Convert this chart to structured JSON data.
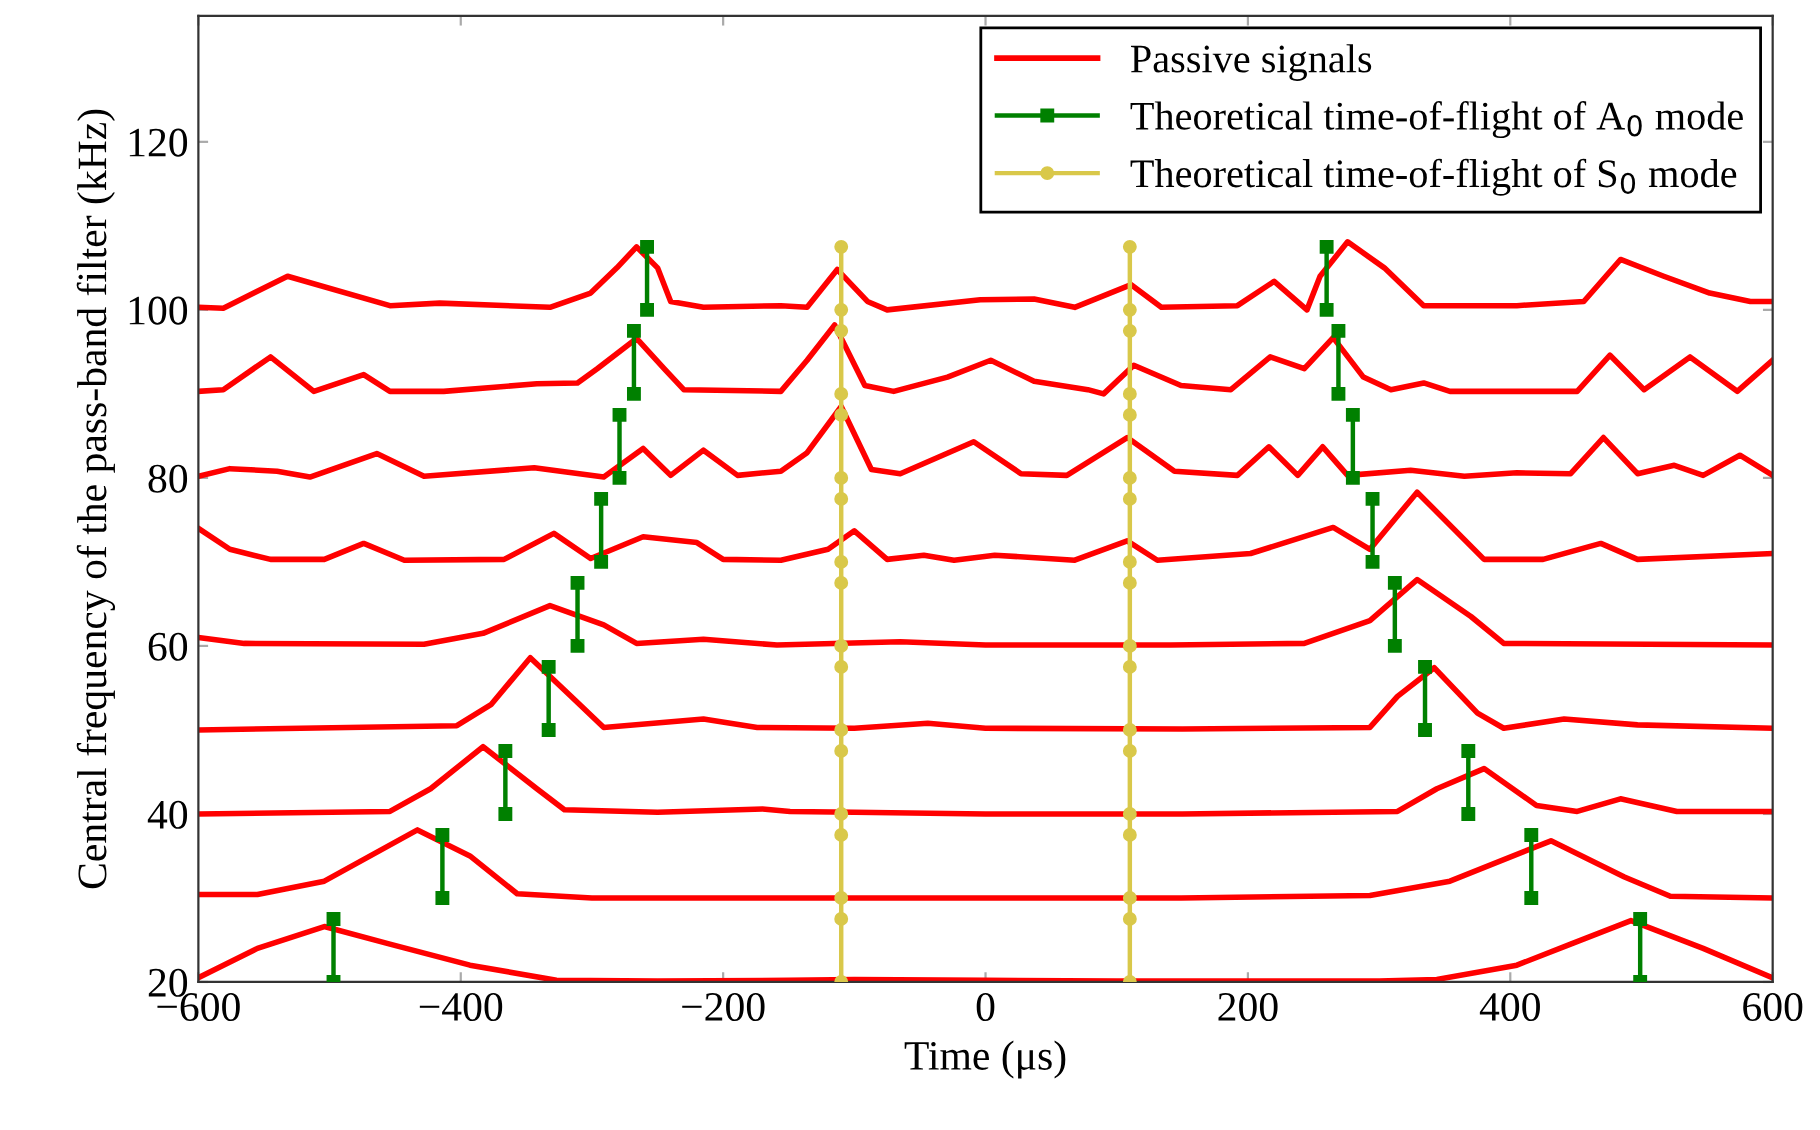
{
  "chart_data": {
    "type": "line",
    "xlabel": "Time (μs)",
    "ylabel": "Central frequency of the pass-band filter (kHz)",
    "xlim": [
      -600,
      600
    ],
    "ylim": [
      20,
      135
    ],
    "xticks": [
      {
        "value": -600,
        "label": "−600"
      },
      {
        "value": -400,
        "label": "−400"
      },
      {
        "value": -200,
        "label": "−200"
      },
      0,
      200,
      400,
      600
    ],
    "yticks": [
      20,
      40,
      60,
      80,
      100,
      120
    ],
    "grid": false,
    "legend": "top right",
    "line_style": "solid",
    "series": [
      {
        "name": "Passive signals",
        "color": "#ff0000",
        "marker": "none",
        "x": [
          -600,
          -555,
          -504,
          -454,
          -393,
          -327,
          -250,
          -150,
          -100,
          0,
          100,
          200,
          300,
          344,
          405,
          446,
          492,
          547,
          600
        ],
        "values": [
          20.5,
          24,
          26.6,
          24.5,
          22,
          20.2,
          20.1,
          20.2,
          20.3,
          20.2,
          20.1,
          20.1,
          20.1,
          20.3,
          22,
          24.5,
          27.3,
          24,
          20.5
        ]
      },
      {
        "color": "#ff0000",
        "marker": "none",
        "x": [
          -600,
          -555,
          -504,
          -433,
          -393,
          -357,
          -300,
          -149,
          0,
          149,
          293,
          354,
          431,
          487,
          522,
          600
        ],
        "values": [
          30.4,
          30.4,
          32,
          38.1,
          35,
          30.5,
          30,
          30,
          30,
          30,
          30.3,
          32,
          36.8,
          32.5,
          30.2,
          30
        ]
      },
      {
        "color": "#ff0000",
        "marker": "none",
        "x": [
          -600,
          -454,
          -423,
          -383,
          -342,
          -321,
          -250,
          -170,
          -149,
          -100,
          0,
          150,
          314,
          344,
          380,
          420,
          451,
          484,
          527,
          600
        ],
        "values": [
          40,
          40.3,
          43,
          48,
          43,
          40.5,
          40.2,
          40.6,
          40.3,
          40.2,
          40,
          40,
          40.3,
          43,
          45.4,
          41,
          40.3,
          41.8,
          40.3,
          40.3
        ]
      },
      {
        "color": "#ff0000",
        "marker": "none",
        "x": [
          -600,
          -403,
          -377,
          -347,
          -316,
          -291,
          -215,
          -174,
          -100,
          -44,
          0,
          150,
          293,
          314,
          342,
          375,
          395,
          441,
          497,
          600
        ],
        "values": [
          50,
          50.5,
          53,
          58.6,
          54,
          50.3,
          51.3,
          50.3,
          50.2,
          50.8,
          50.2,
          50.1,
          50.3,
          54,
          57.4,
          52,
          50.2,
          51.3,
          50.6,
          50.2
        ]
      },
      {
        "color": "#ff0000",
        "marker": "none",
        "x": [
          -600,
          -565,
          -428,
          -383,
          -332,
          -291,
          -266,
          -215,
          -159,
          -65,
          0,
          141,
          243,
          293,
          329,
          370,
          395,
          600
        ],
        "values": [
          61,
          60.3,
          60.2,
          61.5,
          64.8,
          62.5,
          60.3,
          60.8,
          60.1,
          60.5,
          60.1,
          60.1,
          60.3,
          63,
          67.9,
          63.5,
          60.3,
          60.1
        ]
      },
      {
        "color": "#ff0000",
        "marker": "none",
        "x": [
          -600,
          -576,
          -545,
          -504,
          -474,
          -443,
          -367,
          -329,
          -301,
          -261,
          -220,
          -200,
          -156,
          -120,
          -100,
          -75,
          -47,
          -24,
          7,
          68,
          108,
          131,
          202,
          265,
          293,
          329,
          380,
          425,
          469,
          497,
          600
        ],
        "values": [
          74,
          71.5,
          70.3,
          70.3,
          72.2,
          70.2,
          70.3,
          73.4,
          70.4,
          73,
          72.3,
          70.3,
          70.2,
          71.5,
          73.7,
          70.3,
          70.8,
          70.2,
          70.8,
          70.2,
          72.5,
          70.2,
          71,
          74.1,
          71.5,
          78.3,
          70.3,
          70.3,
          72.2,
          70.3,
          71
        ]
      },
      {
        "color": "#ff0000",
        "marker": "none",
        "x": [
          -600,
          -576,
          -540,
          -515,
          -464,
          -428,
          -344,
          -291,
          -261,
          -240,
          -215,
          -189,
          -156,
          -136,
          -110,
          -87,
          -65,
          -9,
          27,
          62,
          108,
          144,
          192,
          216,
          238,
          257,
          276,
          324,
          365,
          405,
          446,
          471,
          497,
          525,
          547,
          575,
          600
        ],
        "values": [
          80.2,
          81.1,
          80.8,
          80.1,
          82.9,
          80.2,
          81.2,
          80.1,
          83.5,
          80.3,
          83.3,
          80.3,
          80.8,
          83,
          88.5,
          81,
          80.5,
          84.3,
          80.5,
          80.3,
          84.8,
          80.8,
          80.3,
          83.7,
          80.3,
          83.7,
          80.3,
          80.9,
          80.2,
          80.6,
          80.5,
          84.8,
          80.5,
          81.5,
          80.3,
          82.7,
          80.3
        ]
      },
      {
        "color": "#ff0000",
        "marker": "none",
        "x": [
          -600,
          -581,
          -545,
          -512,
          -474,
          -454,
          -413,
          -342,
          -311,
          -296,
          -266,
          -245,
          -230,
          -156,
          -136,
          -115,
          -92,
          -70,
          -29,
          4,
          37,
          78,
          90,
          113,
          149,
          187,
          217,
          243,
          265,
          288,
          309,
          334,
          354,
          451,
          476,
          502,
          537,
          573,
          600
        ],
        "values": [
          90.3,
          90.5,
          94.4,
          90.3,
          92.3,
          90.3,
          90.3,
          91.2,
          91.3,
          93,
          96.6,
          93,
          90.5,
          90.3,
          94,
          98.2,
          91,
          90.3,
          92,
          94,
          91.5,
          90.5,
          90,
          93.4,
          91,
          90.5,
          94.4,
          93,
          96.7,
          92,
          90.5,
          91.3,
          90.3,
          90.3,
          94.6,
          90.5,
          94.4,
          90.3,
          94
        ]
      },
      {
        "color": "#ff0000",
        "marker": "none",
        "x": [
          -600,
          -581,
          -532,
          -454,
          -416,
          -332,
          -301,
          -281,
          -266,
          -250,
          -240,
          -215,
          -156,
          -136,
          -113,
          -90,
          -75,
          -4,
          37,
          68,
          111,
          134,
          192,
          220,
          245,
          255,
          276,
          304,
          334,
          405,
          456,
          484,
          517,
          552,
          583,
          600
        ],
        "values": [
          100.3,
          100.2,
          104,
          100.5,
          100.8,
          100.3,
          102,
          105,
          107.5,
          105,
          101,
          100.3,
          100.5,
          100.3,
          104.8,
          101,
          100,
          101.2,
          101.3,
          100.3,
          103,
          100.3,
          100.5,
          103.4,
          100,
          104,
          108.1,
          105,
          100.5,
          100.5,
          101,
          106,
          104,
          102,
          101,
          101
        ]
      },
      {
        "name": "Theoretical time-of-flight of A$_{0}$ mode",
        "color": "#008000",
        "marker": "square",
        "x": [
          -497,
          -497,
          null,
          -414,
          -414,
          null,
          -366,
          -366,
          null,
          -333,
          -333,
          null,
          -311,
          -311,
          null,
          -293,
          -293,
          null,
          -279,
          -279,
          null,
          -268,
          -268,
          null,
          -258,
          -258,
          null,
          499,
          499,
          null,
          416,
          416,
          null,
          368,
          368,
          null,
          335,
          335,
          null,
          312,
          312,
          null,
          295,
          295,
          null,
          280,
          280,
          null,
          269,
          269,
          null,
          260,
          260
        ],
        "values": [
          20,
          27.5,
          null,
          30,
          37.5,
          null,
          40,
          47.5,
          null,
          50,
          57.5,
          null,
          60,
          67.5,
          null,
          70,
          77.5,
          null,
          80,
          87.5,
          null,
          90,
          97.5,
          null,
          100,
          107.5,
          null,
          20,
          27.5,
          null,
          30,
          37.5,
          null,
          40,
          47.5,
          null,
          50,
          57.5,
          null,
          60,
          67.5,
          null,
          70,
          77.5,
          null,
          80,
          87.5,
          null,
          90,
          97.5,
          null,
          100,
          107.5
        ]
      },
      {
        "name": "Theoretical time-of-flight of S$_{0}$ mode",
        "color": "#d9c84a",
        "marker": "circle",
        "x": [
          -110,
          -110,
          -110,
          -110,
          -110,
          -110,
          -110,
          -110,
          -110,
          -110,
          -110,
          -110,
          -110,
          -110,
          -110,
          -110,
          -110,
          -110,
          null,
          110,
          110,
          110,
          110,
          110,
          110,
          110,
          110,
          110,
          110,
          110,
          110,
          110,
          110,
          110,
          110,
          110,
          110
        ],
        "values": [
          20,
          27.5,
          30,
          37.5,
          40,
          47.5,
          50,
          57.5,
          60,
          67.5,
          70,
          77.5,
          80,
          87.5,
          90,
          97.5,
          100,
          107.5,
          null,
          20,
          27.5,
          30,
          37.5,
          40,
          47.5,
          50,
          57.5,
          60,
          67.5,
          70,
          77.5,
          80,
          87.5,
          90,
          97.5,
          100,
          107.5
        ]
      }
    ]
  }
}
